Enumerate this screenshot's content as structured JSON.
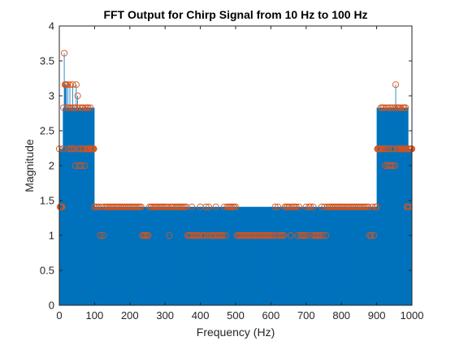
{
  "chart_data": {
    "type": "stem",
    "title": "FFT Output for Chirp Signal from 10 Hz to 100 Hz",
    "xlabel": "Frequency (Hz)",
    "ylabel": "Magnitude",
    "xlim": [
      0,
      1000
    ],
    "ylim": [
      0,
      4
    ],
    "xticks": [
      "0",
      "100",
      "200",
      "300",
      "400",
      "500",
      "600",
      "700",
      "800",
      "900",
      "1000"
    ],
    "yticks": [
      "0",
      "0.5",
      "1",
      "1.5",
      "2",
      "2.5",
      "3",
      "3.5",
      "4"
    ],
    "grid": false,
    "legend": "none",
    "stem_color": "#0072BD",
    "marker_color": "#D95319",
    "bands": [
      {
        "x_range": [
          0,
          10
        ],
        "level": 2.24
      },
      {
        "x_range": [
          10,
          100
        ],
        "level": 2.83
      },
      {
        "x_range": [
          100,
          900
        ],
        "level": 1.41
      },
      {
        "x_range": [
          900,
          990
        ],
        "level": 2.83
      },
      {
        "x_range": [
          990,
          1000
        ],
        "level": 2.24
      }
    ],
    "series": [
      {
        "values": [
          [
            0,
            2.24
          ],
          [
            2,
            1.41
          ],
          [
            4,
            1.41
          ],
          [
            6,
            1.41
          ],
          [
            8,
            1.41
          ],
          [
            10,
            2.24
          ],
          [
            12,
            2.83
          ],
          [
            14,
            3.61
          ],
          [
            16,
            3.16
          ],
          [
            18,
            3.16
          ],
          [
            20,
            3.16
          ],
          [
            22,
            2.83
          ],
          [
            24,
            3.16
          ],
          [
            26,
            2.24
          ],
          [
            28,
            2.83
          ],
          [
            30,
            3.16
          ],
          [
            32,
            2.24
          ],
          [
            34,
            2.83
          ],
          [
            36,
            2.24
          ],
          [
            38,
            3.16
          ],
          [
            40,
            2.83
          ],
          [
            42,
            2.24
          ],
          [
            44,
            2.83
          ],
          [
            46,
            2.0
          ],
          [
            48,
            3.16
          ],
          [
            50,
            2.83
          ],
          [
            52,
            3.0
          ],
          [
            54,
            2.24
          ],
          [
            56,
            2.0
          ],
          [
            58,
            2.83
          ],
          [
            60,
            2.24
          ],
          [
            62,
            2.0
          ],
          [
            64,
            2.83
          ],
          [
            66,
            2.24
          ],
          [
            68,
            2.83
          ],
          [
            70,
            2.24
          ],
          [
            72,
            2.0
          ],
          [
            74,
            2.83
          ],
          [
            76,
            2.24
          ],
          [
            78,
            2.83
          ],
          [
            80,
            2.24
          ],
          [
            82,
            2.83
          ],
          [
            84,
            2.24
          ],
          [
            86,
            2.24
          ],
          [
            88,
            2.83
          ],
          [
            90,
            2.24
          ],
          [
            92,
            2.24
          ],
          [
            94,
            2.24
          ],
          [
            96,
            2.24
          ],
          [
            98,
            2.24
          ],
          [
            100,
            1.41
          ],
          [
            104,
            1.41
          ],
          [
            108,
            1.41
          ],
          [
            112,
            1.41
          ],
          [
            116,
            1.0
          ],
          [
            120,
            1.41
          ],
          [
            124,
            1.0
          ],
          [
            128,
            1.41
          ],
          [
            132,
            1.41
          ],
          [
            136,
            1.41
          ],
          [
            140,
            1.41
          ],
          [
            144,
            1.41
          ],
          [
            148,
            1.41
          ],
          [
            152,
            1.41
          ],
          [
            156,
            1.41
          ],
          [
            160,
            1.41
          ],
          [
            164,
            1.41
          ],
          [
            168,
            1.41
          ],
          [
            172,
            1.41
          ],
          [
            176,
            1.41
          ],
          [
            180,
            1.41
          ],
          [
            184,
            1.41
          ],
          [
            188,
            1.41
          ],
          [
            192,
            1.41
          ],
          [
            196,
            1.41
          ],
          [
            200,
            1.41
          ],
          [
            204,
            1.41
          ],
          [
            208,
            1.41
          ],
          [
            212,
            1.41
          ],
          [
            216,
            1.41
          ],
          [
            220,
            1.41
          ],
          [
            224,
            1.41
          ],
          [
            228,
            1.41
          ],
          [
            232,
            1.41
          ],
          [
            236,
            1.0
          ],
          [
            240,
            1.0
          ],
          [
            244,
            1.0
          ],
          [
            248,
            1.0
          ],
          [
            252,
            1.0
          ],
          [
            256,
            1.41
          ],
          [
            260,
            1.41
          ],
          [
            264,
            1.41
          ],
          [
            268,
            1.41
          ],
          [
            272,
            1.41
          ],
          [
            276,
            1.41
          ],
          [
            280,
            1.41
          ],
          [
            284,
            1.41
          ],
          [
            288,
            1.41
          ],
          [
            292,
            1.41
          ],
          [
            296,
            1.41
          ],
          [
            300,
            1.41
          ],
          [
            304,
            1.41
          ],
          [
            308,
            1.41
          ],
          [
            312,
            1.0
          ],
          [
            316,
            1.41
          ],
          [
            320,
            1.41
          ],
          [
            324,
            1.41
          ],
          [
            328,
            1.41
          ],
          [
            332,
            1.41
          ],
          [
            336,
            1.41
          ],
          [
            340,
            1.41
          ],
          [
            344,
            1.41
          ],
          [
            348,
            1.41
          ],
          [
            352,
            1.41
          ],
          [
            356,
            1.41
          ],
          [
            360,
            1.41
          ],
          [
            364,
            1.0
          ],
          [
            368,
            1.0
          ],
          [
            372,
            1.0
          ],
          [
            376,
            1.41
          ],
          [
            380,
            1.0
          ],
          [
            384,
            1.0
          ],
          [
            388,
            1.0
          ],
          [
            392,
            1.0
          ],
          [
            396,
            1.0
          ],
          [
            400,
            1.41
          ],
          [
            404,
            1.0
          ],
          [
            408,
            1.0
          ],
          [
            412,
            1.0
          ],
          [
            416,
            1.41
          ],
          [
            420,
            1.0
          ],
          [
            424,
            1.41
          ],
          [
            428,
            1.0
          ],
          [
            432,
            1.0
          ],
          [
            436,
            1.0
          ],
          [
            440,
            1.0
          ],
          [
            444,
            1.41
          ],
          [
            448,
            1.0
          ],
          [
            452,
            1.0
          ],
          [
            456,
            1.0
          ],
          [
            460,
            1.0
          ],
          [
            464,
            1.0
          ],
          [
            468,
            1.41
          ],
          [
            472,
            1.0
          ],
          [
            476,
            1.41
          ],
          [
            480,
            1.41
          ],
          [
            484,
            1.41
          ],
          [
            488,
            1.41
          ],
          [
            492,
            1.41
          ],
          [
            496,
            1.41
          ],
          [
            500,
            1.41
          ],
          [
            504,
            1.0
          ],
          [
            508,
            1.0
          ],
          [
            512,
            1.0
          ],
          [
            516,
            1.0
          ],
          [
            520,
            1.0
          ],
          [
            524,
            1.0
          ],
          [
            528,
            1.0
          ],
          [
            532,
            1.0
          ],
          [
            536,
            1.0
          ],
          [
            540,
            1.0
          ],
          [
            544,
            1.0
          ],
          [
            548,
            1.0
          ],
          [
            552,
            1.0
          ],
          [
            556,
            1.0
          ],
          [
            560,
            1.0
          ],
          [
            564,
            1.0
          ],
          [
            568,
            1.0
          ],
          [
            572,
            1.0
          ],
          [
            576,
            1.0
          ],
          [
            580,
            1.0
          ],
          [
            584,
            1.0
          ],
          [
            588,
            1.0
          ],
          [
            592,
            1.0
          ],
          [
            596,
            1.0
          ],
          [
            600,
            1.0
          ],
          [
            604,
            1.0
          ],
          [
            608,
            1.0
          ],
          [
            612,
            1.41
          ],
          [
            616,
            1.0
          ],
          [
            620,
            1.41
          ],
          [
            624,
            1.0
          ],
          [
            628,
            1.0
          ],
          [
            632,
            1.0
          ],
          [
            636,
            1.0
          ],
          [
            640,
            1.41
          ],
          [
            644,
            1.41
          ],
          [
            648,
            1.41
          ],
          [
            652,
            1.41
          ],
          [
            656,
            1.0
          ],
          [
            660,
            1.41
          ],
          [
            664,
            1.41
          ],
          [
            668,
            1.41
          ],
          [
            672,
            1.41
          ],
          [
            676,
            1.0
          ],
          [
            680,
            1.41
          ],
          [
            684,
            1.0
          ],
          [
            688,
            1.0
          ],
          [
            692,
            1.0
          ],
          [
            696,
            1.0
          ],
          [
            700,
            1.41
          ],
          [
            704,
            1.0
          ],
          [
            708,
            1.41
          ],
          [
            712,
            1.41
          ],
          [
            716,
            1.0
          ],
          [
            720,
            1.41
          ],
          [
            724,
            1.0
          ],
          [
            728,
            1.0
          ],
          [
            732,
            1.0
          ],
          [
            736,
            1.0
          ],
          [
            740,
            1.0
          ],
          [
            744,
            1.41
          ],
          [
            748,
            1.0
          ],
          [
            752,
            1.41
          ],
          [
            756,
            1.0
          ],
          [
            760,
            1.41
          ],
          [
            764,
            1.41
          ],
          [
            768,
            1.41
          ],
          [
            772,
            1.41
          ],
          [
            776,
            1.41
          ],
          [
            780,
            1.41
          ],
          [
            784,
            1.41
          ],
          [
            788,
            1.41
          ],
          [
            792,
            1.41
          ],
          [
            796,
            1.41
          ],
          [
            800,
            1.41
          ],
          [
            804,
            1.41
          ],
          [
            808,
            1.41
          ],
          [
            812,
            1.41
          ],
          [
            816,
            1.41
          ],
          [
            820,
            1.41
          ],
          [
            824,
            1.41
          ],
          [
            828,
            1.41
          ],
          [
            832,
            1.41
          ],
          [
            836,
            1.41
          ],
          [
            840,
            1.41
          ],
          [
            844,
            1.41
          ],
          [
            848,
            1.41
          ],
          [
            852,
            1.41
          ],
          [
            856,
            1.41
          ],
          [
            860,
            1.41
          ],
          [
            864,
            1.41
          ],
          [
            868,
            1.41
          ],
          [
            872,
            1.41
          ],
          [
            876,
            1.41
          ],
          [
            880,
            1.0
          ],
          [
            884,
            1.0
          ],
          [
            888,
            1.41
          ],
          [
            892,
            1.0
          ],
          [
            896,
            1.41
          ],
          [
            900,
            1.41
          ],
          [
            902,
            2.24
          ],
          [
            904,
            2.24
          ],
          [
            906,
            2.24
          ],
          [
            908,
            2.24
          ],
          [
            910,
            2.24
          ],
          [
            912,
            2.83
          ],
          [
            914,
            2.24
          ],
          [
            916,
            2.83
          ],
          [
            918,
            2.24
          ],
          [
            920,
            2.83
          ],
          [
            922,
            2.24
          ],
          [
            924,
            2.0
          ],
          [
            926,
            2.83
          ],
          [
            928,
            2.24
          ],
          [
            930,
            2.0
          ],
          [
            932,
            2.83
          ],
          [
            934,
            2.24
          ],
          [
            936,
            2.0
          ],
          [
            938,
            2.83
          ],
          [
            940,
            2.0
          ],
          [
            942,
            2.24
          ],
          [
            944,
            2.83
          ],
          [
            946,
            2.0
          ],
          [
            948,
            2.24
          ],
          [
            950,
            2.83
          ],
          [
            952,
            2.0
          ],
          [
            954,
            3.16
          ],
          [
            956,
            2.83
          ],
          [
            958,
            2.24
          ],
          [
            960,
            2.83
          ],
          [
            962,
            2.24
          ],
          [
            964,
            2.83
          ],
          [
            966,
            2.24
          ],
          [
            968,
            2.83
          ],
          [
            970,
            2.24
          ],
          [
            972,
            2.24
          ],
          [
            974,
            2.83
          ],
          [
            976,
            2.24
          ],
          [
            978,
            2.83
          ],
          [
            980,
            2.24
          ],
          [
            982,
            2.83
          ],
          [
            984,
            2.24
          ],
          [
            986,
            1.41
          ],
          [
            988,
            1.41
          ],
          [
            990,
            2.24
          ],
          [
            992,
            1.41
          ],
          [
            994,
            2.24
          ],
          [
            996,
            2.24
          ],
          [
            998,
            2.24
          ],
          [
            1000,
            2.24
          ]
        ]
      }
    ]
  }
}
